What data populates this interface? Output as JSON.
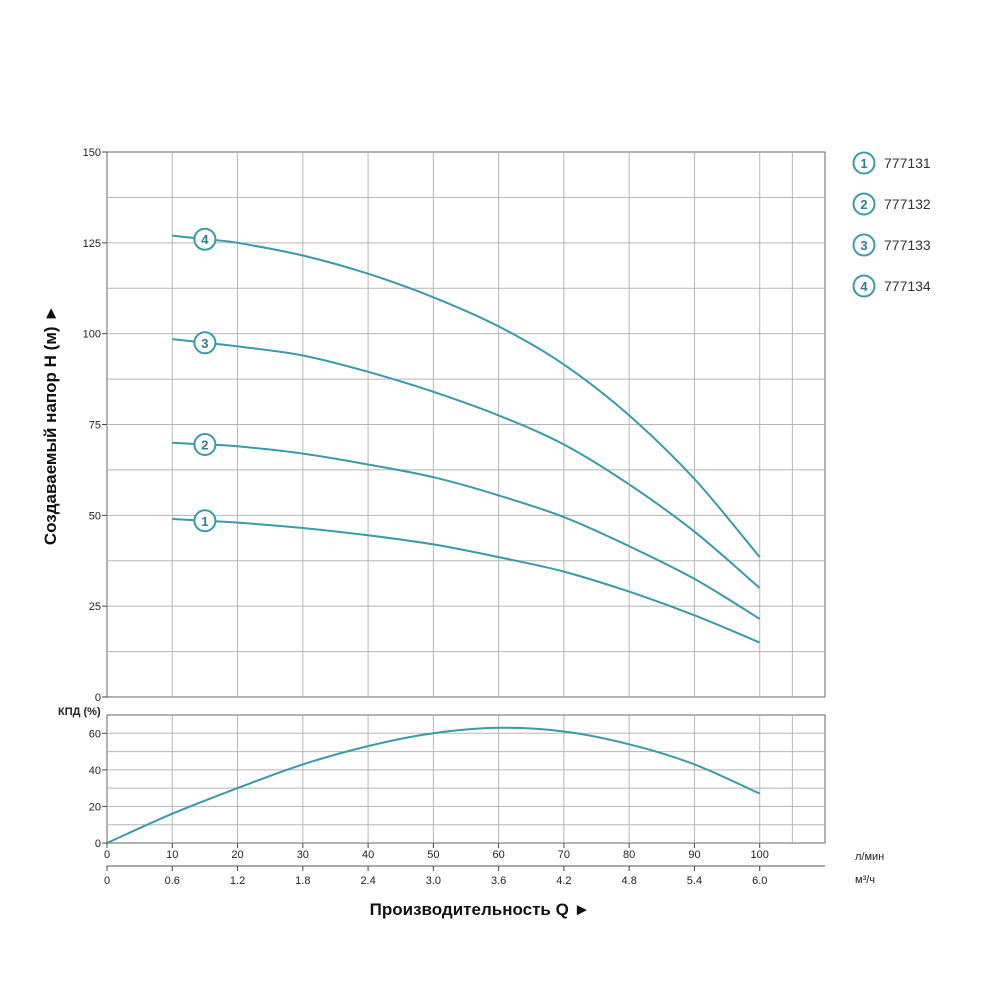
{
  "chart_data": [
    {
      "type": "line",
      "ylabel": "Создаваемый напор H (м) ►",
      "ylim": [
        0,
        150
      ],
      "yticks": [
        0,
        25,
        50,
        75,
        100,
        125,
        150
      ],
      "x_unit_label": "л/мин",
      "xlim": [
        0,
        110
      ],
      "xticks": [
        0,
        10,
        20,
        30,
        40,
        50,
        60,
        70,
        80,
        90,
        100
      ],
      "grid": true,
      "series_color": "#3a9aa8",
      "series": [
        {
          "name": "777131",
          "marker": "1",
          "x": [
            10,
            15,
            20,
            30,
            40,
            50,
            60,
            70,
            80,
            90,
            100
          ],
          "y": [
            49,
            48.5,
            48,
            46.5,
            44.5,
            42,
            38.5,
            34.5,
            29,
            22.5,
            15
          ]
        },
        {
          "name": "777132",
          "marker": "2",
          "x": [
            10,
            15,
            20,
            30,
            40,
            50,
            60,
            70,
            80,
            90,
            100
          ],
          "y": [
            70,
            69.5,
            69,
            67,
            64,
            60.5,
            55.5,
            49.5,
            41.5,
            32.5,
            21.5
          ]
        },
        {
          "name": "777133",
          "marker": "3",
          "x": [
            10,
            15,
            20,
            30,
            40,
            50,
            60,
            70,
            80,
            90,
            100
          ],
          "y": [
            98.5,
            97.5,
            96.5,
            94,
            89.5,
            84,
            77.5,
            69.5,
            58.5,
            45.5,
            30
          ]
        },
        {
          "name": "777134",
          "marker": "4",
          "x": [
            10,
            15,
            20,
            30,
            40,
            50,
            60,
            70,
            80,
            90,
            100
          ],
          "y": [
            127,
            126,
            125,
            121.5,
            116.5,
            110,
            102,
            91.5,
            77.5,
            60,
            38.5
          ]
        }
      ]
    },
    {
      "type": "line",
      "ylabel": "КПД (%)",
      "ylim": [
        0,
        70
      ],
      "yticks": [
        0,
        20,
        40,
        60
      ],
      "xlabel": "Производительность Q ►",
      "x_unit_label": "л/мин",
      "x2_unit_label": "м³/ч",
      "xlim": [
        0,
        110
      ],
      "xticks": [
        0,
        10,
        20,
        30,
        40,
        50,
        60,
        70,
        80,
        90,
        100
      ],
      "x2_ticks": [
        "0",
        "0.6",
        "1.2",
        "1.8",
        "2.4",
        "3.0",
        "3.6",
        "4.2",
        "4.8",
        "5.4",
        "6.0"
      ],
      "grid": true,
      "series_color": "#3a9aa8",
      "series": [
        {
          "x": [
            0,
            10,
            20,
            30,
            40,
            50,
            60,
            70,
            80,
            90,
            100
          ],
          "y": [
            0,
            16,
            30,
            43,
            53,
            60,
            63,
            61,
            54,
            43,
            27
          ]
        }
      ]
    }
  ],
  "legend": [
    {
      "marker": "1",
      "label": "777131"
    },
    {
      "marker": "2",
      "label": "777132"
    },
    {
      "marker": "3",
      "label": "777133"
    },
    {
      "marker": "4",
      "label": "777134"
    }
  ]
}
